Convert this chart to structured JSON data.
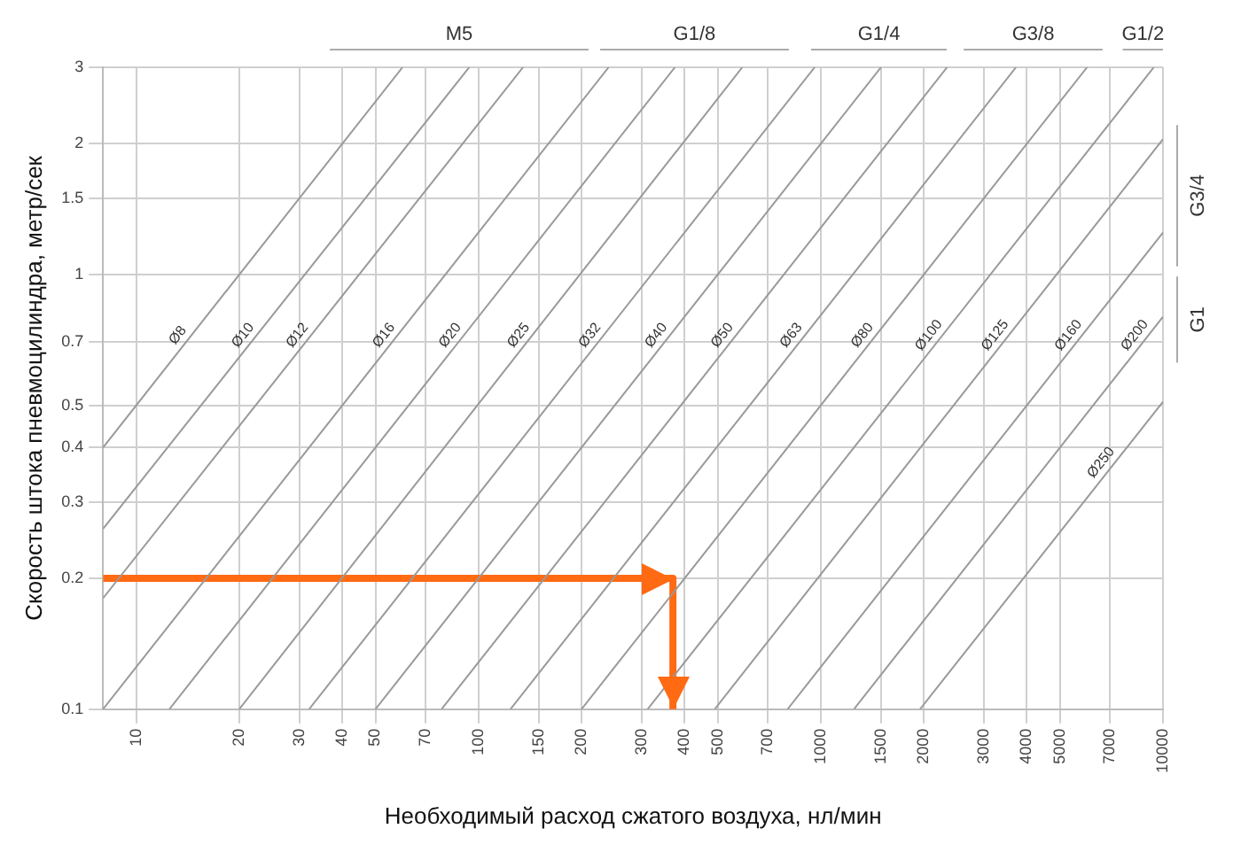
{
  "chart_data": {
    "type": "line",
    "xlabel": "Необходимый расход сжатого воздуха, нл/мин",
    "ylabel": "Скорость штока пневмоцилиндра, метр/сек",
    "log": "xy",
    "grid": true,
    "legend": false,
    "marker": "none",
    "line_style": "solid",
    "xlim": [
      8,
      10000
    ],
    "xticks": [
      10,
      20,
      30,
      40,
      50,
      70,
      100,
      150,
      200,
      300,
      400,
      500,
      700,
      1000,
      1500,
      2000,
      3000,
      4000,
      5000,
      7000,
      10000
    ],
    "ylim": [
      0.1,
      3
    ],
    "yticks": [
      0.1,
      0.2,
      0.3,
      0.4,
      0.5,
      0.7,
      1,
      1.5,
      2,
      3
    ],
    "annotations": [
      "M5",
      "G1/8",
      "G1/4",
      "G3/8",
      "G1/2",
      "G3/4",
      "G1"
    ],
    "series": [
      {
        "name": "Ø8",
        "color": "#999999",
        "x": [
          8,
          60
        ],
        "values": [
          0.4,
          3
        ]
      },
      {
        "name": "Ø10",
        "color": "#999999",
        "x": [
          8,
          94
        ],
        "values": [
          0.26,
          3
        ]
      },
      {
        "name": "Ø12",
        "color": "#999999",
        "x": [
          8,
          135
        ],
        "values": [
          0.18,
          3
        ]
      },
      {
        "name": "Ø16",
        "color": "#999999",
        "x": [
          8,
          240
        ],
        "values": [
          0.1,
          3
        ]
      },
      {
        "name": "Ø20",
        "color": "#999999",
        "x": [
          12.5,
          375
        ],
        "values": [
          0.1,
          3
        ]
      },
      {
        "name": "Ø25",
        "color": "#999999",
        "x": [
          20,
          590
        ],
        "values": [
          0.1,
          3
        ]
      },
      {
        "name": "Ø32",
        "color": "#999999",
        "x": [
          32,
          960
        ],
        "values": [
          0.1,
          3
        ]
      },
      {
        "name": "Ø40",
        "color": "#999999",
        "x": [
          50,
          1500
        ],
        "values": [
          0.1,
          3
        ]
      },
      {
        "name": "Ø50",
        "color": "#999999",
        "x": [
          78,
          2340
        ],
        "values": [
          0.1,
          3
        ]
      },
      {
        "name": "Ø63",
        "color": "#999999",
        "x": [
          124,
          3720
        ],
        "values": [
          0.1,
          3
        ]
      },
      {
        "name": "Ø80",
        "color": "#999999",
        "x": [
          200,
          6000
        ],
        "values": [
          0.1,
          3
        ]
      },
      {
        "name": "Ø100",
        "color": "#999999",
        "x": [
          312,
          9400
        ],
        "values": [
          0.1,
          3
        ]
      },
      {
        "name": "Ø125",
        "color": "#999999",
        "x": [
          490,
          10000
        ],
        "values": [
          0.1,
          2.05
        ]
      },
      {
        "name": "Ø160",
        "color": "#999999",
        "x": [
          800,
          10000
        ],
        "values": [
          0.1,
          1.25
        ]
      },
      {
        "name": "Ø200",
        "color": "#999999",
        "x": [
          1250,
          10000
        ],
        "values": [
          0.1,
          0.8
        ]
      },
      {
        "name": "Ø250",
        "color": "#999999",
        "x": [
          1950,
          10000
        ],
        "values": [
          0.1,
          0.51
        ]
      },
      {
        "color": "#ff6a13",
        "x": [
          8,
          370,
          370
        ],
        "values": [
          0.2,
          0.2,
          0.1
        ]
      }
    ]
  }
}
